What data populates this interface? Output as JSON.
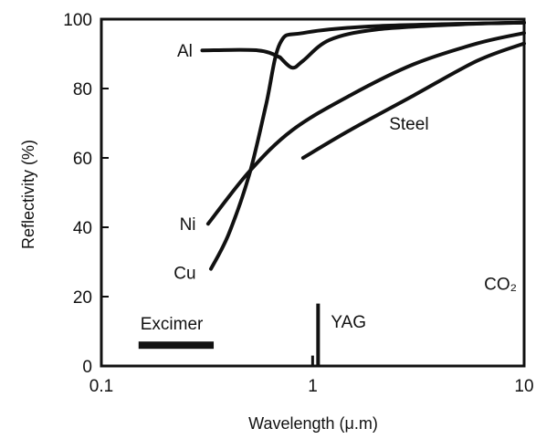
{
  "chart_data": {
    "type": "line",
    "title": "",
    "xlabel": "Wavelength (μ.m)",
    "ylabel": "Reflectivity (%)",
    "xscale": "log",
    "xlim": [
      0.1,
      10
    ],
    "ylim": [
      0,
      100
    ],
    "xticks": [
      {
        "value": 0.1,
        "label": "0.1"
      },
      {
        "value": 1,
        "label": "1"
      },
      {
        "value": 10,
        "label": "10"
      }
    ],
    "yticks": [
      {
        "value": 0,
        "label": "0"
      },
      {
        "value": 20,
        "label": "20"
      },
      {
        "value": 40,
        "label": "40"
      },
      {
        "value": 60,
        "label": "60"
      },
      {
        "value": 80,
        "label": "80"
      },
      {
        "value": 100,
        "label": "100"
      }
    ],
    "grid": false,
    "series": [
      {
        "name": "Al",
        "points": [
          [
            0.7,
            89
          ],
          [
            0.8,
            86
          ],
          [
            0.9,
            88
          ],
          [
            1.2,
            94
          ],
          [
            2,
            97
          ],
          [
            5,
            98.5
          ],
          [
            10,
            99
          ]
        ]
      },
      {
        "name": "Cu",
        "points": [
          [
            0.33,
            28
          ],
          [
            0.4,
            38
          ],
          [
            0.5,
            55
          ],
          [
            0.6,
            75
          ],
          [
            0.7,
            93
          ],
          [
            0.9,
            96
          ],
          [
            2,
            98
          ],
          [
            10,
            99
          ]
        ]
      },
      {
        "name": "Ni",
        "points": [
          [
            0.32,
            41
          ],
          [
            0.5,
            56
          ],
          [
            0.8,
            68
          ],
          [
            1.5,
            78
          ],
          [
            3,
            87
          ],
          [
            6,
            93
          ],
          [
            10,
            96
          ]
        ]
      },
      {
        "name": "Steel",
        "points": [
          [
            0.9,
            60
          ],
          [
            1.5,
            68
          ],
          [
            3,
            78
          ],
          [
            6,
            88
          ],
          [
            10,
            93
          ]
        ]
      }
    ],
    "lead_line": {
      "series": "Al",
      "points": [
        [
          0.3,
          91
        ],
        [
          0.55,
          91
        ],
        [
          0.7,
          89
        ]
      ]
    },
    "annotations": [
      {
        "id": "excimer",
        "label": "Excimer",
        "kind": "band",
        "x": [
          0.15,
          0.34
        ],
        "y": 6
      },
      {
        "id": "yag",
        "label": "YAG",
        "kind": "spike",
        "x": 1.06,
        "y": [
          0,
          18
        ]
      },
      {
        "id": "co2",
        "label": "CO₂",
        "kind": "text",
        "x": 10.6,
        "y": 22
      }
    ],
    "curve_labels": [
      {
        "series": "Al",
        "text": "Al",
        "x": 0.27,
        "y": 91
      },
      {
        "series": "Ni",
        "text": "Ni",
        "x": 0.28,
        "y": 41
      },
      {
        "series": "Cu",
        "text": "Cu",
        "x": 0.28,
        "y": 27
      },
      {
        "series": "Steel",
        "text": "Steel",
        "x": 2.3,
        "y": 70
      }
    ]
  }
}
